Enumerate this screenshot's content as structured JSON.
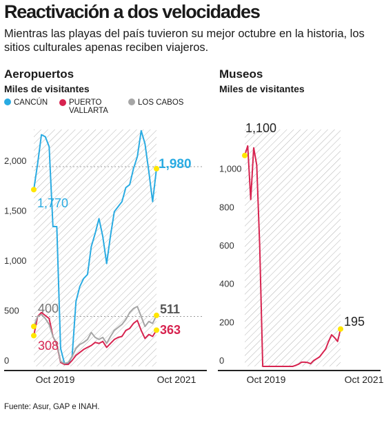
{
  "title": "Reactivación a dos velocidades",
  "subtitle": "Mientras las playas del país tuvieron su mejor octubre en la historia, los sitios culturales apenas reciben viajeros.",
  "source": "Fuente: Asur, GAP e INAH.",
  "colors": {
    "cancun": "#29abe2",
    "puerto_vallarta": "#d7234f",
    "los_cabos": "#a6a6a6",
    "marker": "#ffe600"
  },
  "chart_data": [
    {
      "type": "line",
      "title": "Aeropuertos",
      "ylabel": "Miles de visitantes",
      "ylim": [
        0,
        2400
      ],
      "yticks": [
        0,
        500,
        1000,
        1500,
        2000
      ],
      "ytick_labels": [
        "0",
        "500",
        "1,000",
        "1,500",
        "2,000"
      ],
      "xtick_labels": [
        "Oct 2019",
        "Oct 2021"
      ],
      "x": [
        "Oct 2018",
        "Nov 2018",
        "Dec 2018",
        "Jan 2019",
        "Feb 2019",
        "Mar 2019",
        "Apr 2019",
        "May 2019",
        "Jun 2019",
        "Jul 2019",
        "Aug 2019",
        "Sep 2019",
        "Oct 2019",
        "Nov 2019",
        "Dec 2019",
        "Jan 2020",
        "Feb 2020",
        "Mar 2020",
        "Apr 2020",
        "May 2020",
        "Jun 2020",
        "Jul 2020",
        "Aug 2020",
        "Sep 2020",
        "Oct 2020",
        "Nov 2020",
        "Dec 2020",
        "Jan 2021",
        "Feb 2021",
        "Mar 2021",
        "Apr 2021",
        "May 2021",
        "Jun 2021",
        "Jul 2021",
        "Aug 2021",
        "Sep 2021",
        "Oct 2021"
      ],
      "series": [
        {
          "name": "CANCÚN",
          "color_key": "cancun",
          "values": [
            1770,
            2030,
            2320,
            2300,
            2200,
            1400,
            1400,
            180,
            30,
            30,
            100,
            650,
            800,
            880,
            920,
            1200,
            1330,
            1480,
            1300,
            1030,
            1310,
            1550,
            1600,
            1650,
            1790,
            1820,
            1980,
            2100,
            2360,
            2230,
            1950,
            1650,
            1980,
            null,
            null,
            null,
            null
          ]
        },
        {
          "name": "PUERTO VALLARTA",
          "color_key": "puerto_vallarta",
          "values": [
            308,
            500,
            540,
            510,
            480,
            300,
            220,
            40,
            20,
            20,
            60,
            110,
            140,
            170,
            190,
            210,
            240,
            230,
            250,
            190,
            230,
            270,
            290,
            300,
            360,
            380,
            430,
            460,
            360,
            280,
            320,
            300,
            363,
            null,
            null,
            null,
            null
          ]
        },
        {
          "name": "LOS CABOS",
          "color_key": "los_cabos",
          "values": [
            400,
            500,
            520,
            480,
            420,
            300,
            230,
            50,
            30,
            40,
            100,
            180,
            220,
            240,
            270,
            340,
            290,
            270,
            290,
            230,
            300,
            360,
            390,
            420,
            470,
            540,
            580,
            600,
            500,
            400,
            450,
            430,
            511,
            null,
            null,
            null,
            null
          ]
        }
      ],
      "annotations": [
        {
          "series": "CANCÚN",
          "index": 0,
          "text": "1,770"
        },
        {
          "series": "CANCÚN",
          "index": 32,
          "text": "1,980"
        },
        {
          "series": "LOS CABOS",
          "index": 0,
          "text": "400"
        },
        {
          "series": "LOS CABOS",
          "index": 32,
          "text": "511"
        },
        {
          "series": "PUERTO VALLARTA",
          "index": 0,
          "text": "308"
        },
        {
          "series": "PUERTO VALLARTA",
          "index": 32,
          "text": "363"
        }
      ],
      "shaded_range": [
        0,
        32
      ],
      "grid": false
    },
    {
      "type": "line",
      "title": "Museos",
      "ylabel": "Miles de visitantes",
      "ylim": [
        0,
        1250
      ],
      "yticks": [
        0,
        200,
        400,
        600,
        800,
        1000
      ],
      "ytick_labels": [
        "0",
        "200",
        "400",
        "600",
        "800",
        "1,000"
      ],
      "xtick_labels": [
        "Oct 2019",
        "Oct 2021"
      ],
      "x": [
        "Oct 2018",
        "Nov 2018",
        "Dec 2018",
        "Jan 2019",
        "Feb 2019",
        "Mar 2019",
        "Apr 2019",
        "May 2019",
        "Jun 2019",
        "Jul 2019",
        "Aug 2019",
        "Sep 2019",
        "Oct 2019",
        "Nov 2019",
        "Dec 2019",
        "Jan 2020",
        "Feb 2020",
        "Mar 2020",
        "Apr 2020",
        "May 2020",
        "Jun 2020",
        "Jul 2020",
        "Aug 2020",
        "Sep 2020",
        "Oct 2020",
        "Nov 2020",
        "Dec 2020",
        "Jan 2021",
        "Feb 2021",
        "Mar 2021",
        "Apr 2021",
        "May 2021",
        "Jun 2021",
        "Jul 2021",
        "Aug 2021",
        "Sep 2021",
        "Oct 2021"
      ],
      "series": [
        {
          "name": "Museos",
          "color_key": "puerto_vallarta",
          "values": [
            1100,
            1150,
            870,
            1140,
            1050,
            630,
            0,
            0,
            0,
            0,
            0,
            0,
            0,
            0,
            0,
            0,
            0,
            5,
            12,
            22,
            22,
            20,
            14,
            30,
            40,
            50,
            70,
            90,
            130,
            165,
            150,
            130,
            195,
            null,
            null,
            null,
            null
          ]
        }
      ],
      "annotations": [
        {
          "series": "Museos",
          "index": 0,
          "text": "1,100"
        },
        {
          "series": "Museos",
          "index": 32,
          "text": "195"
        }
      ],
      "shaded_range": [
        0,
        32
      ],
      "grid": false
    }
  ],
  "panels": {
    "left": {
      "title": "Aeropuertos",
      "subtitle": "Miles de visitantes"
    },
    "right": {
      "title": "Museos",
      "subtitle": "Miles de visitantes"
    }
  },
  "legend": [
    {
      "label": "CANCÚN",
      "color_key": "cancun"
    },
    {
      "label": "PUERTO\nVALLARTA",
      "color_key": "puerto_vallarta"
    },
    {
      "label": "LOS CABOS",
      "color_key": "los_cabos"
    }
  ]
}
